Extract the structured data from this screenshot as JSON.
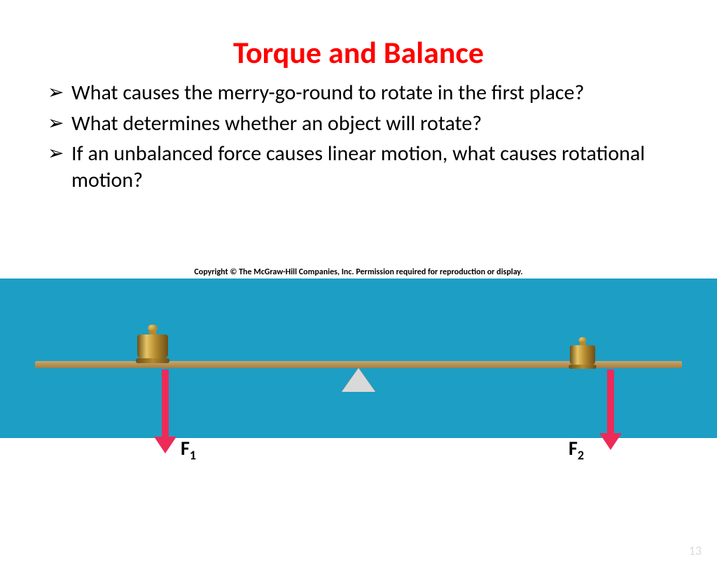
{
  "title": {
    "text": "Torque and Balance",
    "color": "#ff0000"
  },
  "bullets": [
    "What causes the merry-go-round to rotate in the first place?",
    "What determines whether an object will rotate?",
    "If an unbalanced force causes linear motion, what causes rotational motion?"
  ],
  "copyright": "Copyright © The McGraw-Hill Companies, Inc. Permission required for reproduction or display.",
  "diagram": {
    "background_color": "#1d9ec4",
    "lever_color": "#c9a56b",
    "pivot_color": "#d9d9d9",
    "pivot_border": "#8a8a8a",
    "weight_color": "#b58a2e",
    "weight_highlight": "#e6c565",
    "weight_shadow": "#6b4f16",
    "arrow_color": "#ed2b58",
    "label_f1": "F",
    "label_f1_sub": "1",
    "label_f2": "F",
    "label_f2_sub": "2"
  },
  "slide_number": "13"
}
